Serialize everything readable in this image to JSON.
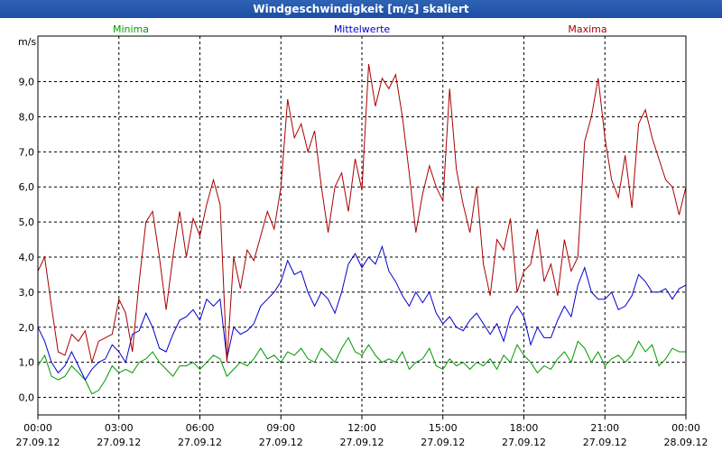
{
  "window": {
    "title": "Windgeschwindigkeit [m/s] skaliert"
  },
  "chart_data": {
    "type": "line",
    "title": "Windgeschwindigkeit [m/s] skaliert",
    "ylabel": "m/s",
    "ylim": [
      -0.5,
      10.3
    ],
    "xlim": [
      0,
      24
    ],
    "grid": true,
    "yticks": [
      "0,0",
      "1,0",
      "2,0",
      "3,0",
      "4,0",
      "5,0",
      "6,0",
      "7,0",
      "8,0",
      "9,0"
    ],
    "xticks": [
      {
        "time": "00:00",
        "date": "27.09.12"
      },
      {
        "time": "03:00",
        "date": "27.09.12"
      },
      {
        "time": "06:00",
        "date": "27.09.12"
      },
      {
        "time": "09:00",
        "date": "27.09.12"
      },
      {
        "time": "12:00",
        "date": "27.09.12"
      },
      {
        "time": "15:00",
        "date": "27.09.12"
      },
      {
        "time": "18:00",
        "date": "27.09.12"
      },
      {
        "time": "21:00",
        "date": "27.09.12"
      },
      {
        "time": "00:00",
        "date": "28.09.12"
      }
    ],
    "legend_labels": [
      "Minima",
      "Mittelwerte",
      "Maxima"
    ],
    "series": [
      {
        "name": "Minima",
        "color": "#009900",
        "values": [
          [
            0,
            0.9
          ],
          [
            0.25,
            1.2
          ],
          [
            0.5,
            0.6
          ],
          [
            0.75,
            0.5
          ],
          [
            1,
            0.6
          ],
          [
            1.25,
            0.9
          ],
          [
            1.5,
            0.7
          ],
          [
            1.75,
            0.5
          ],
          [
            2,
            0.1
          ],
          [
            2.25,
            0.2
          ],
          [
            2.5,
            0.5
          ],
          [
            2.75,
            0.9
          ],
          [
            3,
            0.7
          ],
          [
            3.25,
            0.8
          ],
          [
            3.5,
            0.7
          ],
          [
            3.75,
            1.0
          ],
          [
            4,
            1.1
          ],
          [
            4.25,
            1.3
          ],
          [
            4.5,
            1.0
          ],
          [
            4.75,
            0.8
          ],
          [
            5,
            0.6
          ],
          [
            5.25,
            0.9
          ],
          [
            5.5,
            0.9
          ],
          [
            5.75,
            1.0
          ],
          [
            6,
            0.8
          ],
          [
            6.25,
            1.0
          ],
          [
            6.5,
            1.2
          ],
          [
            6.75,
            1.1
          ],
          [
            7,
            0.6
          ],
          [
            7.25,
            0.8
          ],
          [
            7.5,
            1.0
          ],
          [
            7.75,
            0.9
          ],
          [
            8,
            1.1
          ],
          [
            8.25,
            1.4
          ],
          [
            8.5,
            1.1
          ],
          [
            8.75,
            1.2
          ],
          [
            9,
            1.0
          ],
          [
            9.25,
            1.3
          ],
          [
            9.5,
            1.2
          ],
          [
            9.75,
            1.4
          ],
          [
            10,
            1.1
          ],
          [
            10.25,
            1.0
          ],
          [
            10.5,
            1.4
          ],
          [
            10.75,
            1.2
          ],
          [
            11,
            1.0
          ],
          [
            11.25,
            1.4
          ],
          [
            11.5,
            1.7
          ],
          [
            11.75,
            1.3
          ],
          [
            12,
            1.2
          ],
          [
            12.25,
            1.5
          ],
          [
            12.5,
            1.2
          ],
          [
            12.75,
            1.0
          ],
          [
            13,
            1.1
          ],
          [
            13.25,
            1.0
          ],
          [
            13.5,
            1.3
          ],
          [
            13.75,
            0.8
          ],
          [
            14,
            1.0
          ],
          [
            14.25,
            1.1
          ],
          [
            14.5,
            1.4
          ],
          [
            14.75,
            0.9
          ],
          [
            15,
            0.8
          ],
          [
            15.25,
            1.1
          ],
          [
            15.5,
            0.9
          ],
          [
            15.75,
            1.0
          ],
          [
            16,
            0.8
          ],
          [
            16.25,
            1.0
          ],
          [
            16.5,
            0.9
          ],
          [
            16.75,
            1.1
          ],
          [
            17,
            0.8
          ],
          [
            17.25,
            1.2
          ],
          [
            17.5,
            1.0
          ],
          [
            17.75,
            1.5
          ],
          [
            18,
            1.2
          ],
          [
            18.25,
            1.0
          ],
          [
            18.5,
            0.7
          ],
          [
            18.75,
            0.9
          ],
          [
            19,
            0.8
          ],
          [
            19.25,
            1.1
          ],
          [
            19.5,
            1.3
          ],
          [
            19.75,
            1.0
          ],
          [
            20,
            1.6
          ],
          [
            20.25,
            1.4
          ],
          [
            20.5,
            1.0
          ],
          [
            20.75,
            1.3
          ],
          [
            21,
            0.9
          ],
          [
            21.25,
            1.1
          ],
          [
            21.5,
            1.2
          ],
          [
            21.75,
            1.0
          ],
          [
            22,
            1.2
          ],
          [
            22.25,
            1.6
          ],
          [
            22.5,
            1.3
          ],
          [
            22.75,
            1.5
          ],
          [
            23,
            0.9
          ],
          [
            23.25,
            1.1
          ],
          [
            23.5,
            1.4
          ],
          [
            23.75,
            1.3
          ],
          [
            24,
            1.3
          ]
        ]
      },
      {
        "name": "Mittelwerte",
        "color": "#0000cc",
        "values": [
          [
            0,
            2.0
          ],
          [
            0.25,
            1.6
          ],
          [
            0.5,
            1.0
          ],
          [
            0.75,
            0.7
          ],
          [
            1,
            0.9
          ],
          [
            1.25,
            1.3
          ],
          [
            1.5,
            0.9
          ],
          [
            1.75,
            0.5
          ],
          [
            2,
            0.8
          ],
          [
            2.25,
            1.0
          ],
          [
            2.5,
            1.1
          ],
          [
            2.75,
            1.5
          ],
          [
            3,
            1.3
          ],
          [
            3.25,
            1.0
          ],
          [
            3.5,
            1.8
          ],
          [
            3.75,
            1.9
          ],
          [
            4,
            2.4
          ],
          [
            4.25,
            2.0
          ],
          [
            4.5,
            1.4
          ],
          [
            4.75,
            1.3
          ],
          [
            5,
            1.8
          ],
          [
            5.25,
            2.2
          ],
          [
            5.5,
            2.3
          ],
          [
            5.75,
            2.5
          ],
          [
            6,
            2.2
          ],
          [
            6.25,
            2.8
          ],
          [
            6.5,
            2.6
          ],
          [
            6.75,
            2.8
          ],
          [
            7,
            1.1
          ],
          [
            7.25,
            2.0
          ],
          [
            7.5,
            1.8
          ],
          [
            7.75,
            1.9
          ],
          [
            8,
            2.1
          ],
          [
            8.25,
            2.6
          ],
          [
            8.5,
            2.8
          ],
          [
            8.75,
            3.0
          ],
          [
            9,
            3.3
          ],
          [
            9.25,
            3.9
          ],
          [
            9.5,
            3.5
          ],
          [
            9.75,
            3.6
          ],
          [
            10,
            3.0
          ],
          [
            10.25,
            2.6
          ],
          [
            10.5,
            3.0
          ],
          [
            10.75,
            2.8
          ],
          [
            11,
            2.4
          ],
          [
            11.25,
            3.0
          ],
          [
            11.5,
            3.8
          ],
          [
            11.75,
            4.1
          ],
          [
            12,
            3.7
          ],
          [
            12.25,
            4.0
          ],
          [
            12.5,
            3.8
          ],
          [
            12.75,
            4.3
          ],
          [
            13,
            3.6
          ],
          [
            13.25,
            3.3
          ],
          [
            13.5,
            2.9
          ],
          [
            13.75,
            2.6
          ],
          [
            14,
            3.0
          ],
          [
            14.25,
            2.7
          ],
          [
            14.5,
            3.0
          ],
          [
            14.75,
            2.4
          ],
          [
            15,
            2.1
          ],
          [
            15.25,
            2.3
          ],
          [
            15.5,
            2.0
          ],
          [
            15.75,
            1.9
          ],
          [
            16,
            2.2
          ],
          [
            16.25,
            2.4
          ],
          [
            16.5,
            2.1
          ],
          [
            16.75,
            1.8
          ],
          [
            17,
            2.1
          ],
          [
            17.25,
            1.6
          ],
          [
            17.5,
            2.3
          ],
          [
            17.75,
            2.6
          ],
          [
            18,
            2.3
          ],
          [
            18.25,
            1.5
          ],
          [
            18.5,
            2.0
          ],
          [
            18.75,
            1.7
          ],
          [
            19,
            1.7
          ],
          [
            19.25,
            2.2
          ],
          [
            19.5,
            2.6
          ],
          [
            19.75,
            2.3
          ],
          [
            20,
            3.2
          ],
          [
            20.25,
            3.7
          ],
          [
            20.5,
            3.0
          ],
          [
            20.75,
            2.8
          ],
          [
            21,
            2.8
          ],
          [
            21.25,
            3.0
          ],
          [
            21.5,
            2.5
          ],
          [
            21.75,
            2.6
          ],
          [
            22,
            2.9
          ],
          [
            22.25,
            3.5
          ],
          [
            22.5,
            3.3
          ],
          [
            22.75,
            3.0
          ],
          [
            23,
            3.0
          ],
          [
            23.25,
            3.1
          ],
          [
            23.5,
            2.8
          ],
          [
            23.75,
            3.1
          ],
          [
            24,
            3.2
          ]
        ]
      },
      {
        "name": "Maxima",
        "color": "#aa0000",
        "values": [
          [
            0,
            3.6
          ],
          [
            0.25,
            4.0
          ],
          [
            0.5,
            2.6
          ],
          [
            0.75,
            1.3
          ],
          [
            1,
            1.2
          ],
          [
            1.25,
            1.8
          ],
          [
            1.5,
            1.6
          ],
          [
            1.75,
            1.9
          ],
          [
            2,
            1.0
          ],
          [
            2.25,
            1.6
          ],
          [
            2.5,
            1.7
          ],
          [
            2.75,
            1.8
          ],
          [
            3,
            2.8
          ],
          [
            3.25,
            2.4
          ],
          [
            3.5,
            1.3
          ],
          [
            3.75,
            3.3
          ],
          [
            4,
            5.0
          ],
          [
            4.25,
            5.3
          ],
          [
            4.5,
            4.0
          ],
          [
            4.75,
            2.5
          ],
          [
            5,
            4.0
          ],
          [
            5.25,
            5.3
          ],
          [
            5.5,
            4.0
          ],
          [
            5.75,
            5.1
          ],
          [
            6,
            4.6
          ],
          [
            6.25,
            5.5
          ],
          [
            6.5,
            6.2
          ],
          [
            6.75,
            5.5
          ],
          [
            7,
            1.0
          ],
          [
            7.25,
            4.0
          ],
          [
            7.5,
            3.1
          ],
          [
            7.75,
            4.2
          ],
          [
            8,
            3.9
          ],
          [
            8.25,
            4.6
          ],
          [
            8.5,
            5.3
          ],
          [
            8.75,
            4.8
          ],
          [
            9,
            6.0
          ],
          [
            9.25,
            8.5
          ],
          [
            9.5,
            7.4
          ],
          [
            9.75,
            7.8
          ],
          [
            10,
            7.0
          ],
          [
            10.25,
            7.6
          ],
          [
            10.5,
            6.0
          ],
          [
            10.75,
            4.7
          ],
          [
            11,
            6.0
          ],
          [
            11.25,
            6.4
          ],
          [
            11.5,
            5.3
          ],
          [
            11.75,
            6.8
          ],
          [
            12,
            5.9
          ],
          [
            12.25,
            9.5
          ],
          [
            12.5,
            8.3
          ],
          [
            12.75,
            9.1
          ],
          [
            13,
            8.8
          ],
          [
            13.25,
            9.2
          ],
          [
            13.5,
            8.0
          ],
          [
            13.75,
            6.4
          ],
          [
            14,
            4.7
          ],
          [
            14.25,
            5.8
          ],
          [
            14.5,
            6.6
          ],
          [
            14.75,
            6.0
          ],
          [
            15,
            5.6
          ],
          [
            15.25,
            8.8
          ],
          [
            15.5,
            6.5
          ],
          [
            15.75,
            5.5
          ],
          [
            16,
            4.7
          ],
          [
            16.25,
            6.0
          ],
          [
            16.5,
            3.8
          ],
          [
            16.75,
            2.9
          ],
          [
            17,
            4.5
          ],
          [
            17.25,
            4.2
          ],
          [
            17.5,
            5.1
          ],
          [
            17.75,
            3.0
          ],
          [
            18,
            3.6
          ],
          [
            18.25,
            3.8
          ],
          [
            18.5,
            4.8
          ],
          [
            18.75,
            3.3
          ],
          [
            19,
            3.8
          ],
          [
            19.25,
            2.9
          ],
          [
            19.5,
            4.5
          ],
          [
            19.75,
            3.6
          ],
          [
            20,
            4.0
          ],
          [
            20.25,
            7.3
          ],
          [
            20.5,
            8.0
          ],
          [
            20.75,
            9.1
          ],
          [
            21,
            7.4
          ],
          [
            21.25,
            6.2
          ],
          [
            21.5,
            5.7
          ],
          [
            21.75,
            6.9
          ],
          [
            22,
            5.4
          ],
          [
            22.25,
            7.8
          ],
          [
            22.5,
            8.2
          ],
          [
            22.75,
            7.4
          ],
          [
            23,
            6.8
          ],
          [
            23.25,
            6.2
          ],
          [
            23.5,
            6.0
          ],
          [
            23.75,
            5.2
          ],
          [
            24,
            6.0
          ]
        ]
      }
    ]
  }
}
